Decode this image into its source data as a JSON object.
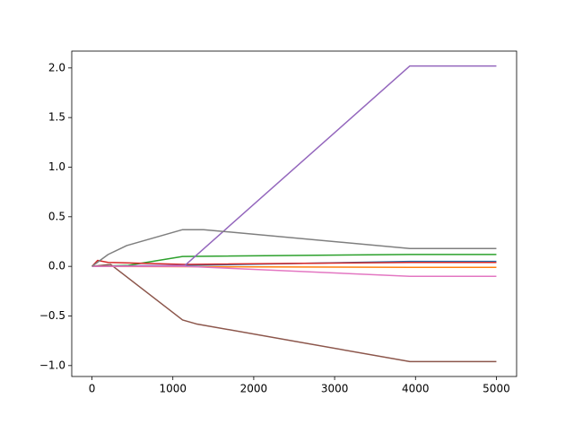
{
  "chart_data": {
    "type": "line",
    "xlim": [
      -250,
      5250
    ],
    "ylim": [
      -1.11,
      2.17
    ],
    "xticks": [
      0,
      1000,
      2000,
      3000,
      4000,
      5000
    ],
    "yticks": [
      {
        "value": -1.0,
        "label": "−1.0"
      },
      {
        "value": -0.5,
        "label": "−0.5"
      },
      {
        "value": 0.0,
        "label": "0.0"
      },
      {
        "value": 0.5,
        "label": "0.5"
      },
      {
        "value": 1.0,
        "label": "1.0"
      },
      {
        "value": 1.5,
        "label": "1.5"
      },
      {
        "value": 2.0,
        "label": "2.0"
      }
    ],
    "grid": false,
    "series": [
      {
        "color": "#1f77b4",
        "x": [
          0,
          1150,
          3930,
          5000
        ],
        "values": [
          0,
          0.01,
          0.05,
          0.05
        ]
      },
      {
        "color": "#ff7f0e",
        "x": [
          0,
          3930,
          5000
        ],
        "values": [
          0,
          -0.01,
          -0.01
        ]
      },
      {
        "color": "#2ca02c",
        "x": [
          0,
          450,
          1120,
          3930,
          5000
        ],
        "values": [
          0,
          0.01,
          0.1,
          0.12,
          0.12
        ]
      },
      {
        "color": "#d62728",
        "x": [
          0,
          70,
          200,
          1150,
          3930,
          5000
        ],
        "values": [
          0,
          0.06,
          0.04,
          0.02,
          0.04,
          0.04
        ]
      },
      {
        "color": "#9467bd",
        "x": [
          0,
          1150,
          3930,
          5000
        ],
        "values": [
          0,
          0.01,
          2.02,
          2.02
        ]
      },
      {
        "color": "#8c564b",
        "x": [
          0,
          230,
          1120,
          1290,
          3930,
          5000
        ],
        "values": [
          0,
          0.02,
          -0.54,
          -0.58,
          -0.96,
          -0.96
        ]
      },
      {
        "color": "#e377c2",
        "x": [
          0,
          1150,
          3930,
          5000
        ],
        "values": [
          0,
          0.0,
          -0.1,
          -0.1
        ]
      },
      {
        "color": "#7f7f7f",
        "x": [
          0,
          200,
          430,
          1120,
          1380,
          3930,
          5000
        ],
        "values": [
          0,
          0.12,
          0.21,
          0.37,
          0.37,
          0.18,
          0.18
        ]
      }
    ]
  }
}
